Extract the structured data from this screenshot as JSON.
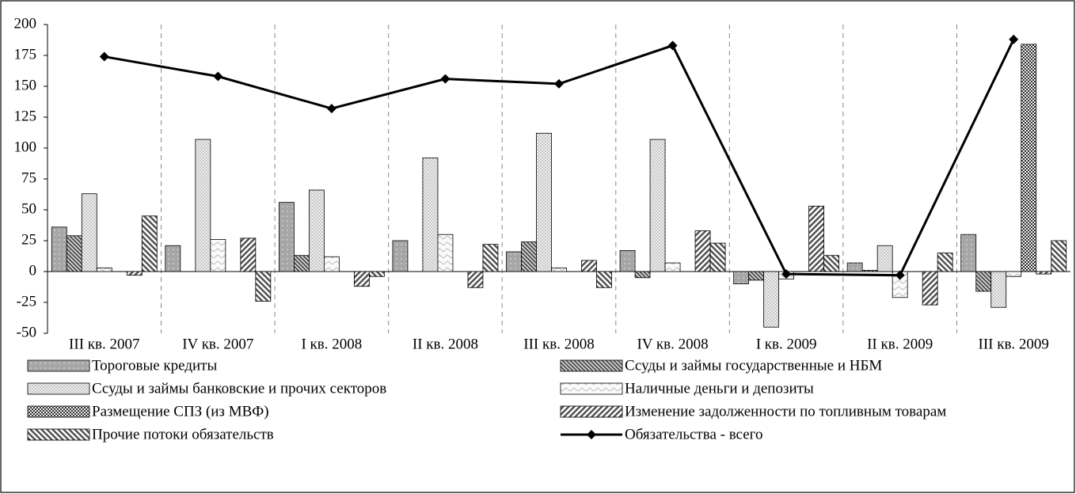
{
  "chart_data": {
    "type": "bar",
    "categories": [
      "III кв. 2007",
      "IV кв. 2007",
      "I кв. 2008",
      "II кв. 2008",
      "III кв. 2008",
      "IV кв. 2008",
      "I кв. 2009",
      "II кв. 2009",
      "III кв. 2009"
    ],
    "series": [
      {
        "name": "Тороговые кредиты",
        "type": "bar",
        "color": "#a6a6a6",
        "pattern": "dots",
        "values": [
          36,
          21,
          56,
          25,
          16,
          17,
          -10,
          7,
          30
        ]
      },
      {
        "name": "Ссуды и займы государственные и НБМ",
        "type": "bar",
        "color": "#595959",
        "pattern": "backslash",
        "values": [
          29,
          0,
          13,
          0,
          24,
          -5,
          -7,
          1,
          -16
        ]
      },
      {
        "name": "Ссуды и займы банковские и прочих секторов",
        "type": "bar",
        "color": "#bfbfbf",
        "pattern": "cross",
        "values": [
          63,
          107,
          66,
          92,
          112,
          107,
          -45,
          21,
          -29
        ]
      },
      {
        "name": "Наличные деньги и депозиты",
        "type": "bar",
        "color": "#e0e0e0",
        "pattern": "zigzag",
        "values": [
          3,
          26,
          12,
          30,
          3,
          7,
          -6,
          -21,
          -4
        ]
      },
      {
        "name": "Размещение СПЗ (из МВФ)",
        "type": "bar",
        "color": "#404040",
        "pattern": "checker",
        "values": [
          0,
          0,
          0,
          0,
          0,
          0,
          0,
          0,
          184
        ]
      },
      {
        "name": "Изменение задолженности по топливным товарам",
        "type": "bar",
        "color": "#595959",
        "pattern": "slash",
        "values": [
          -3,
          27,
          -12,
          -13,
          9,
          33,
          53,
          -27,
          -2
        ]
      },
      {
        "name": "Прочие потоки обязательств",
        "type": "bar",
        "color": "#595959",
        "pattern": "backslash-wide",
        "values": [
          45,
          -24,
          -4,
          22,
          -13,
          23,
          13,
          15,
          25
        ]
      },
      {
        "name": "Обязательства - всего",
        "type": "line",
        "color": "#000000",
        "values": [
          174,
          158,
          132,
          156,
          152,
          183,
          -2,
          -3,
          188
        ]
      }
    ],
    "ylim": [
      -50,
      200
    ],
    "yticks": [
      -50,
      -25,
      0,
      25,
      50,
      75,
      100,
      125,
      150,
      175,
      200
    ]
  }
}
